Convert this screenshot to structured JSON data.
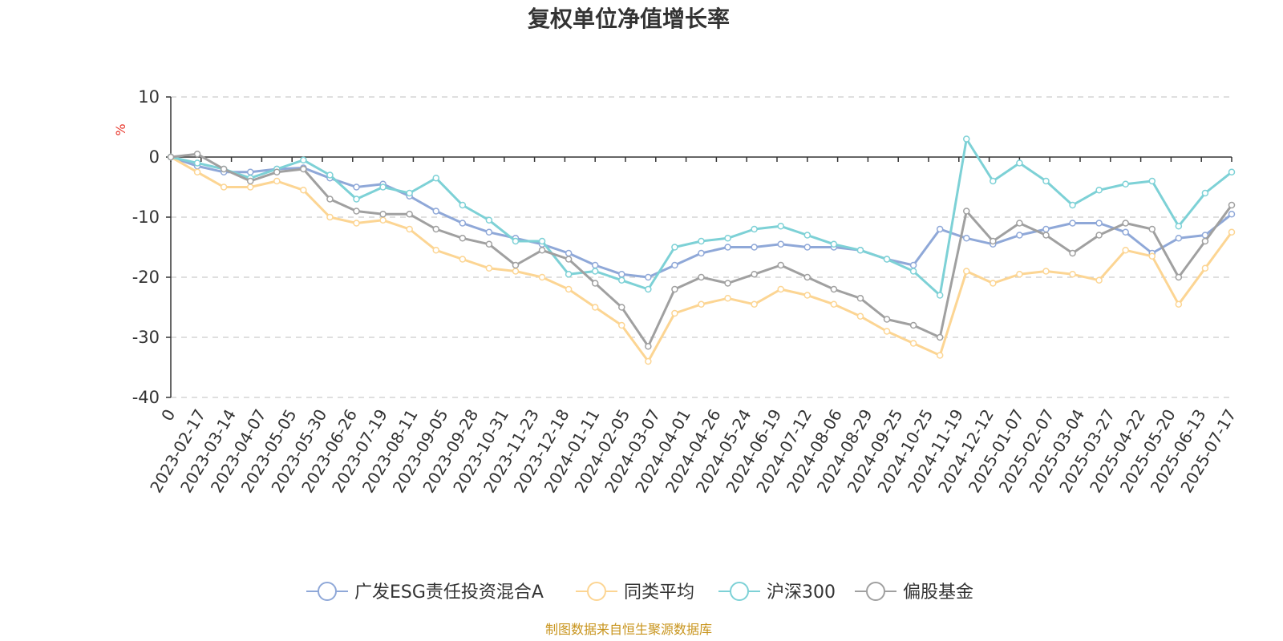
{
  "chart_data": {
    "type": "line",
    "title": "复权单位净值增长率",
    "ylabel": "%",
    "ylim": [
      -40,
      10
    ],
    "yticks": [
      10,
      0,
      -10,
      -20,
      -30,
      -40
    ],
    "grid": true,
    "legend_position": "bottom",
    "x_tick_labels": [
      "0",
      "2023-02-17",
      "2023-03-14",
      "2023-04-07",
      "2023-05-05",
      "2023-05-30",
      "2023-06-26",
      "2023-07-19",
      "2023-08-11",
      "2023-09-05",
      "2023-09-28",
      "2023-10-31",
      "2023-11-23",
      "2023-12-18",
      "2024-01-11",
      "2024-02-05",
      "2024-03-07",
      "2024-04-01",
      "2024-04-26",
      "2024-05-24",
      "2024-06-19",
      "2024-07-12",
      "2024-08-06",
      "2024-08-29",
      "2024-09-25",
      "2024-10-25",
      "2024-11-19",
      "2024-12-12",
      "2025-01-07",
      "2025-02-07",
      "2025-03-04",
      "2025-03-27",
      "2025-04-22",
      "2025-05-20",
      "2025-06-13",
      "2025-07-17"
    ],
    "series": [
      {
        "name": "广发ESG责任投资混合A",
        "color": "#8fa8d8",
        "values": [
          0,
          -1.5,
          -2.5,
          -2.5,
          -2,
          -1.8,
          -3.5,
          -5,
          -4.5,
          -6.5,
          -9,
          -11,
          -12.5,
          -13.5,
          -14.5,
          -16,
          -18,
          -19.5,
          -20,
          -18,
          -16,
          -15,
          -15,
          -14.5,
          -15,
          -15,
          -15.5,
          -17,
          -18,
          -12,
          -13.5,
          -14.5,
          -13,
          -12,
          -11,
          -11,
          -12.5,
          -16,
          -13.5,
          -13,
          -9.5
        ]
      },
      {
        "name": "同类平均",
        "color": "#fcd593",
        "values": [
          0,
          -2.5,
          -5,
          -5,
          -4,
          -5.5,
          -10,
          -11,
          -10.5,
          -12,
          -15.5,
          -17,
          -18.5,
          -19,
          -20,
          -22,
          -25,
          -28,
          -34,
          -26,
          -24.5,
          -23.5,
          -24.5,
          -22,
          -23,
          -24.5,
          -26.5,
          -29,
          -31,
          -33,
          -19,
          -21,
          -19.5,
          -19,
          -19.5,
          -20.5,
          -15.5,
          -16.5,
          -24.5,
          -18.5,
          -12.5
        ]
      },
      {
        "name": "沪深300",
        "color": "#7dd1d6",
        "values": [
          0,
          -1,
          -2,
          -3.5,
          -2,
          -0.5,
          -3,
          -7,
          -5,
          -6,
          -3.5,
          -8,
          -10.5,
          -14,
          -14,
          -19.5,
          -19,
          -20.5,
          -22,
          -15,
          -14,
          -13.5,
          -12,
          -11.5,
          -13,
          -14.5,
          -15.5,
          -17,
          -19,
          -23,
          3,
          -4,
          -1,
          -4,
          -8,
          -5.5,
          -4.5,
          -4,
          -11.5,
          -6,
          -2.5
        ]
      },
      {
        "name": "偏股基金",
        "color": "#a0a0a0",
        "values": [
          0,
          0.5,
          -2,
          -4,
          -2.5,
          -2,
          -7,
          -9,
          -9.5,
          -9.5,
          -12,
          -13.5,
          -14.5,
          -18,
          -15.5,
          -17,
          -21,
          -25,
          -31.5,
          -22,
          -20,
          -21,
          -19.5,
          -18,
          -20,
          -22,
          -23.5,
          -27,
          -28,
          -30,
          -9,
          -14,
          -11,
          -13,
          -16,
          -13,
          -11,
          -12,
          -20,
          -14,
          -8
        ]
      }
    ]
  },
  "source_text": "制图数据来自恒生聚源数据库"
}
